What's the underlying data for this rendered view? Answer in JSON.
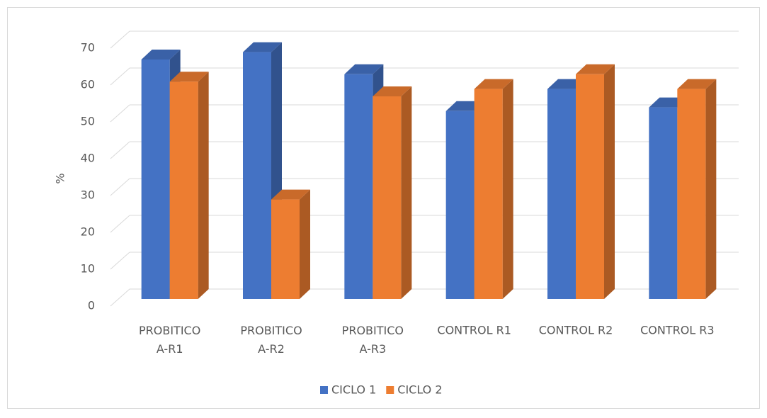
{
  "chart_data": {
    "type": "bar3d",
    "y_label": "%",
    "categories": [
      "PROBITICO A-R1",
      "PROBITICO A-R2",
      "PROBITICO A-R3",
      "CONTROL R1",
      "CONTROL R2",
      "CONTROL R3"
    ],
    "series": [
      {
        "name": "CICLO 1",
        "color": "#4472c4",
        "values": [
          65,
          67,
          61,
          51,
          57,
          52
        ]
      },
      {
        "name": "CICLO 2",
        "color": "#ed7d31",
        "values": [
          59,
          27,
          55,
          57,
          61,
          57
        ]
      }
    ],
    "ylim": [
      0,
      70
    ],
    "yticks": [
      0,
      10,
      20,
      30,
      40,
      50,
      60,
      70
    ],
    "grid": true
  }
}
